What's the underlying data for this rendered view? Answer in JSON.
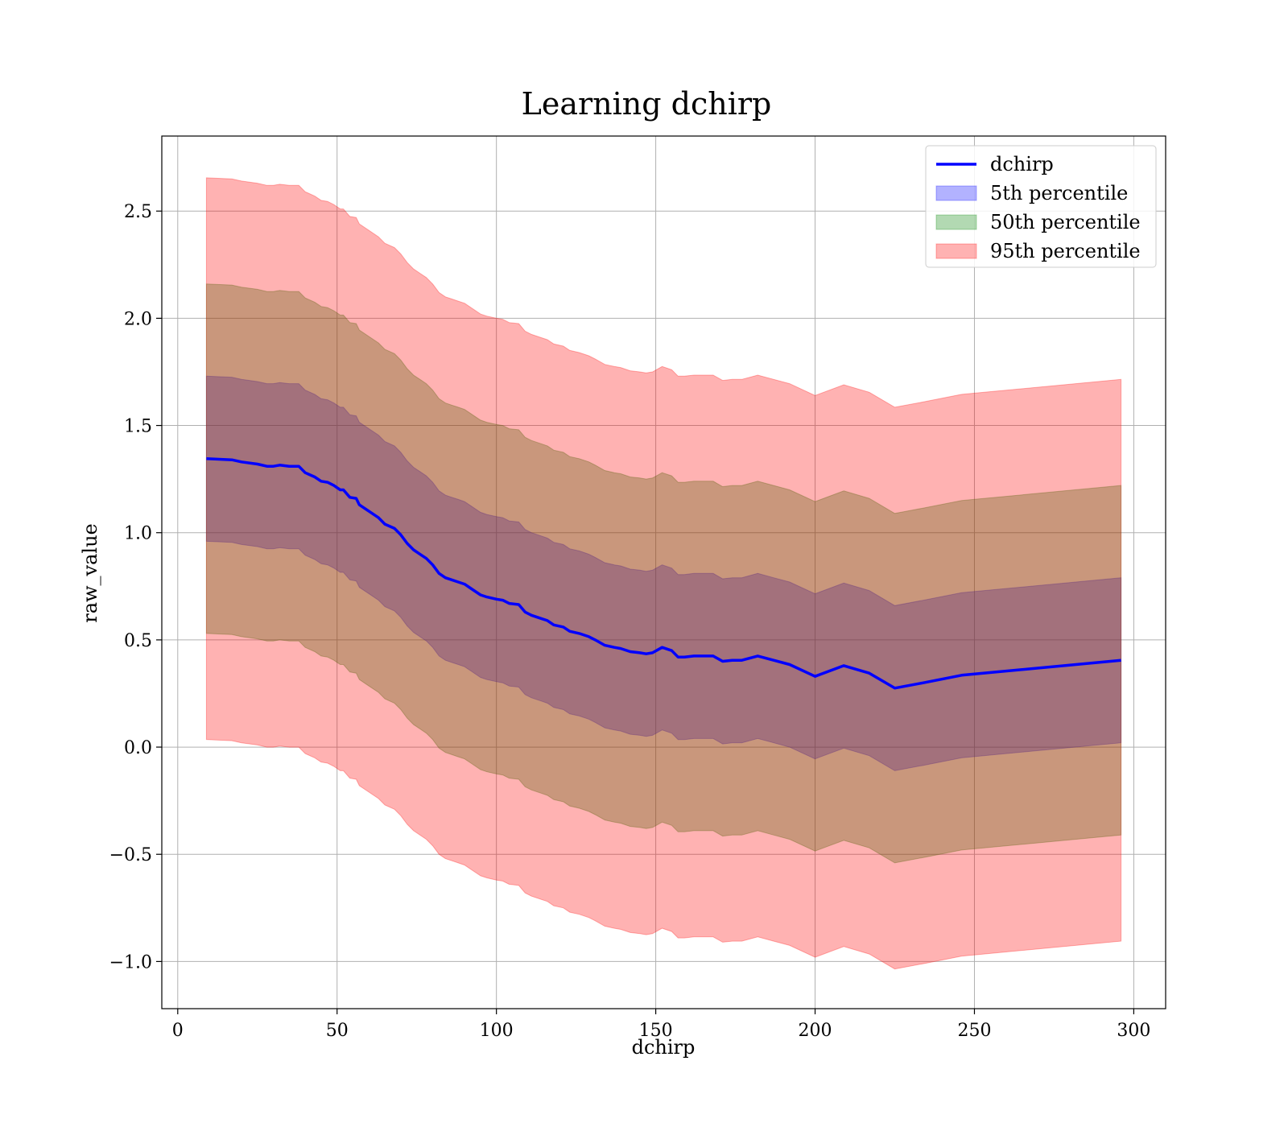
{
  "chart_data": {
    "type": "line",
    "title": "Learning dchirp",
    "xlabel": "dchirp",
    "ylabel": "raw_value",
    "xlim": [
      -5,
      310
    ],
    "ylim": [
      -1.22,
      2.85
    ],
    "xticks": [
      0,
      50,
      100,
      150,
      200,
      250,
      300
    ],
    "xtick_labels": [
      "0",
      "50",
      "100",
      "150",
      "200",
      "250",
      "300"
    ],
    "yticks": [
      -1.0,
      -0.5,
      0.0,
      0.5,
      1.0,
      1.5,
      2.0,
      2.5
    ],
    "ytick_labels": [
      "−1.0",
      "−0.5",
      "0.0",
      "0.5",
      "1.0",
      "1.5",
      "2.0",
      "2.5"
    ],
    "grid": true,
    "legend_position": "top-right",
    "x": [
      9,
      17,
      20,
      25,
      28,
      30,
      32,
      35,
      37,
      38,
      40,
      43,
      45,
      47,
      49,
      50,
      51,
      52,
      54,
      56,
      57,
      60,
      63,
      65,
      68,
      70,
      72,
      74,
      76,
      78,
      80,
      82,
      84,
      86,
      88,
      90,
      92,
      95,
      97,
      100,
      102,
      104,
      107,
      109,
      111,
      114,
      116,
      118,
      121,
      123,
      126,
      129,
      131,
      134,
      137,
      139,
      142,
      145,
      147,
      149,
      152,
      155,
      157,
      159,
      162,
      165,
      168,
      171,
      174,
      177,
      182,
      187,
      192,
      200,
      209,
      217,
      225,
      234,
      246,
      296
    ],
    "series": [
      {
        "name": "dchirp",
        "color": "#0000ff",
        "values": [
          1.345,
          1.34,
          1.33,
          1.32,
          1.31,
          1.31,
          1.315,
          1.31,
          1.31,
          1.31,
          1.28,
          1.26,
          1.24,
          1.235,
          1.22,
          1.21,
          1.2,
          1.2,
          1.165,
          1.16,
          1.13,
          1.1,
          1.07,
          1.04,
          1.02,
          0.99,
          0.95,
          0.92,
          0.9,
          0.88,
          0.85,
          0.81,
          0.79,
          0.78,
          0.77,
          0.76,
          0.74,
          0.71,
          0.7,
          0.69,
          0.685,
          0.67,
          0.665,
          0.63,
          0.615,
          0.6,
          0.59,
          0.57,
          0.56,
          0.54,
          0.53,
          0.515,
          0.5,
          0.475,
          0.465,
          0.46,
          0.445,
          0.44,
          0.435,
          0.44,
          0.465,
          0.45,
          0.42,
          0.42,
          0.425,
          0.425,
          0.425,
          0.4,
          0.405,
          0.405,
          0.425,
          0.405,
          0.385,
          0.33,
          0.38,
          0.345,
          0.275,
          0.3,
          0.335,
          0.405
        ]
      }
    ],
    "bands": [
      {
        "name": "5th percentile",
        "color": "#0000ff",
        "halfwidth": 0.385
      },
      {
        "name": "50th percentile",
        "color": "#008000",
        "halfwidth": 0.815
      },
      {
        "name": "95th percentile",
        "color": "#ff0000",
        "halfwidth": 1.31
      }
    ]
  }
}
